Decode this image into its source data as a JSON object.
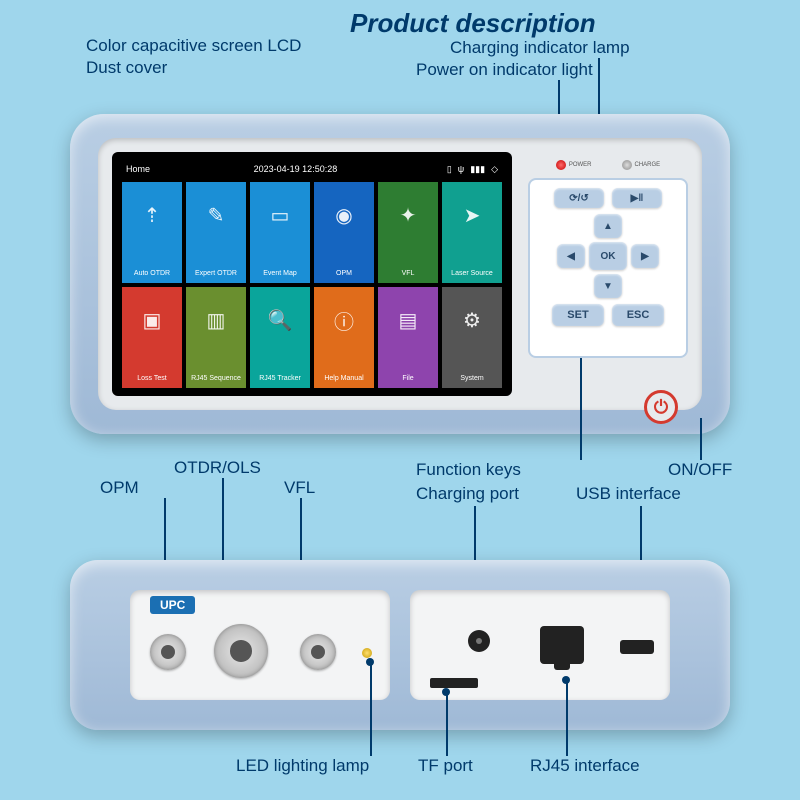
{
  "title": "Product description",
  "labels": {
    "screen": "Color capacitive screen LCD",
    "dust_cover": "Dust cover",
    "charging_lamp": "Charging indicator lamp",
    "power_light": "Power on indicator light",
    "function_keys": "Function keys",
    "on_off": "ON/OFF",
    "opm": "OPM",
    "otdr_ols": "OTDR/OLS",
    "vfl": "VFL",
    "charging_port": "Charging port",
    "usb": "USB interface",
    "led_lamp": "LED lighting lamp",
    "tf": "TF port",
    "rj45": "RJ45 interface"
  },
  "status": {
    "home": "Home",
    "datetime": "2023-04-19   12:50:28"
  },
  "keypad": {
    "ok": "OK",
    "set": "SET",
    "esc": "ESC"
  },
  "tiles": [
    {
      "label": "Auto OTDR",
      "color": "#1b8fd6",
      "icon": "⇡"
    },
    {
      "label": "Expert OTDR",
      "color": "#1b8fd6",
      "icon": "✎"
    },
    {
      "label": "Event Map",
      "color": "#1b8fd6",
      "icon": "▭"
    },
    {
      "label": "OPM",
      "color": "#1565c0",
      "icon": "◉"
    },
    {
      "label": "VFL",
      "color": "#2e7d32",
      "icon": "✦"
    },
    {
      "label": "Laser Source",
      "color": "#10a090",
      "icon": "➤"
    },
    {
      "label": "Loss Test",
      "color": "#d43a2f",
      "icon": "▣"
    },
    {
      "label": "RJ45 Sequence",
      "color": "#6a8f2f",
      "icon": "▥"
    },
    {
      "label": "RJ45 Tracker",
      "color": "#0aa59b",
      "icon": "🔍"
    },
    {
      "label": "Help Manual",
      "color": "#e06c1b",
      "icon": "ⓘ"
    },
    {
      "label": "File",
      "color": "#8e44ad",
      "icon": "▤"
    },
    {
      "label": "System",
      "color": "#555555",
      "icon": "⚙"
    }
  ],
  "upc": "UPC",
  "indicator_text": {
    "power": "POWER",
    "charge": "CHARGE"
  }
}
